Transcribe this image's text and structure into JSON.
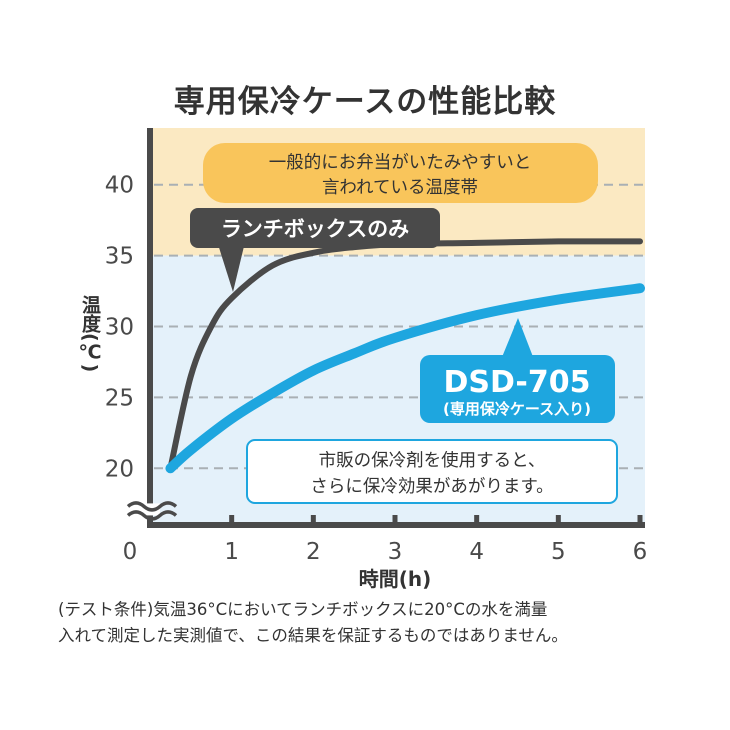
{
  "title": "専用保冷ケースの性能比較",
  "chart_data": {
    "type": "line",
    "xlabel": "時間(h)",
    "ylabel": "温度(℃)",
    "xlim": [
      0,
      6
    ],
    "ylim": [
      16,
      44
    ],
    "x_ticks": [
      0,
      1,
      2,
      3,
      4,
      5,
      6
    ],
    "y_ticks": [
      20,
      25,
      30,
      35,
      40
    ],
    "grid": "horizontal-dashed",
    "series": [
      {
        "name": "ランチボックスのみ",
        "color": "#4a4a4a",
        "x": [
          0.25,
          0.5,
          0.75,
          1.0,
          1.5,
          2.0,
          2.5,
          3.0,
          4.0,
          5.0,
          6.0
        ],
        "y": [
          20.0,
          26.5,
          30.0,
          32.0,
          34.3,
          35.2,
          35.6,
          35.8,
          35.9,
          36.0,
          36.0
        ]
      },
      {
        "name": "DSD-705",
        "subtitle": "(専用保冷ケース入り)",
        "color": "#1ea6df",
        "x": [
          0.25,
          0.5,
          1.0,
          1.5,
          2.0,
          2.5,
          3.0,
          4.0,
          5.0,
          6.0
        ],
        "y": [
          20.0,
          21.3,
          23.5,
          25.3,
          26.9,
          28.1,
          29.2,
          30.8,
          31.9,
          32.7
        ]
      }
    ],
    "bands": [
      {
        "from": 35,
        "to": 44,
        "color": "#fbe9c2"
      },
      {
        "from": 16,
        "to": 35,
        "color": "#e4f1fa"
      }
    ],
    "annotations": {
      "danger_zone": [
        "一般的にお弁当がいたみやすいと",
        "言われている温度帯"
      ],
      "lunchbox_label": "ランチボックスのみ",
      "dsd_label": "DSD-705",
      "dsd_sublabel": "(専用保冷ケース入り)",
      "ice_pack": [
        "市販の保冷剤を使用すると、",
        "さらに保冷効果があがります。"
      ]
    }
  },
  "footnote": [
    "(テスト条件)気温36°Cにおいてランチボックスに20°Cの水を満量",
    "入れて測定した実測値で、この結果を保証するものではありません。"
  ]
}
